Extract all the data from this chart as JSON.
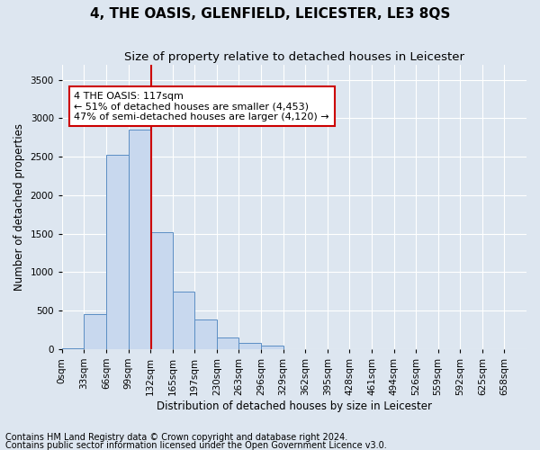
{
  "title": "4, THE OASIS, GLENFIELD, LEICESTER, LE3 8QS",
  "subtitle": "Size of property relative to detached houses in Leicester",
  "xlabel": "Distribution of detached houses by size in Leicester",
  "ylabel": "Number of detached properties",
  "footnote1": "Contains HM Land Registry data © Crown copyright and database right 2024.",
  "footnote2": "Contains public sector information licensed under the Open Government Licence v3.0.",
  "bin_labels": [
    "0sqm",
    "33sqm",
    "66sqm",
    "99sqm",
    "132sqm",
    "165sqm",
    "197sqm",
    "230sqm",
    "263sqm",
    "296sqm",
    "329sqm",
    "362sqm",
    "395sqm",
    "428sqm",
    "461sqm",
    "494sqm",
    "526sqm",
    "559sqm",
    "592sqm",
    "625sqm",
    "658sqm"
  ],
  "bar_values": [
    10,
    450,
    2520,
    2850,
    1520,
    750,
    380,
    150,
    75,
    50,
    0,
    0,
    0,
    0,
    0,
    0,
    0,
    0,
    0,
    0
  ],
  "bar_color": "#c8d8ee",
  "bar_edge_color": "#5b8ec4",
  "vline_x": 3.54,
  "vline_color": "#cc0000",
  "annotation_text": "4 THE OASIS: 117sqm\n← 51% of detached houses are smaller (4,453)\n47% of semi-detached houses are larger (4,120) →",
  "annotation_box_color": "#ffffff",
  "annotation_box_edge": "#cc0000",
  "ylim": [
    0,
    3700
  ],
  "yticks": [
    0,
    500,
    1000,
    1500,
    2000,
    2500,
    3000,
    3500
  ],
  "background_color": "#dde6f0",
  "plot_bg_color": "#dde6f0",
  "title_fontsize": 11,
  "subtitle_fontsize": 9.5,
  "axis_label_fontsize": 8.5,
  "tick_fontsize": 7.5,
  "annotation_fontsize": 8,
  "footnote_fontsize": 7
}
